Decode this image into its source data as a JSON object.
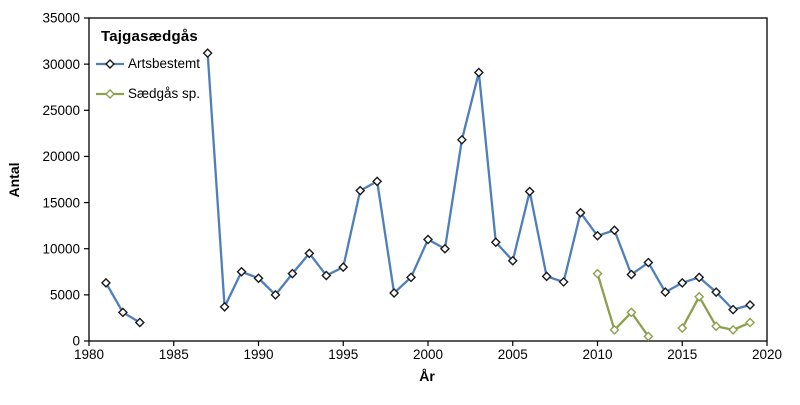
{
  "chart_data": {
    "type": "line",
    "title": "Tajgasædgås",
    "xlabel": "År",
    "ylabel": "Antal",
    "xlim": [
      1980,
      2020
    ],
    "ylim": [
      0,
      35000
    ],
    "x_ticks": [
      1980,
      1985,
      1990,
      1995,
      2000,
      2005,
      2010,
      2015,
      2020
    ],
    "y_ticks": [
      0,
      5000,
      10000,
      15000,
      20000,
      25000,
      30000,
      35000
    ],
    "grid": false,
    "legend_position": "top-left-inside",
    "axis_color": "#000000",
    "series": [
      {
        "name": "Artsbestemt",
        "color": "#4f7fba",
        "marker": "diamond",
        "marker_fill": "#ffffff",
        "marker_outline": "#1a1a1a",
        "points": [
          [
            1981,
            6300
          ],
          [
            1982,
            3100
          ],
          [
            1983,
            2000
          ],
          [
            1987,
            31200
          ],
          [
            1988,
            3700
          ],
          [
            1989,
            7500
          ],
          [
            1990,
            6800
          ],
          [
            1991,
            5000
          ],
          [
            1992,
            7300
          ],
          [
            1993,
            9500
          ],
          [
            1994,
            7100
          ],
          [
            1995,
            8000
          ],
          [
            1996,
            16300
          ],
          [
            1997,
            17300
          ],
          [
            1998,
            5200
          ],
          [
            1999,
            6900
          ],
          [
            2000,
            11000
          ],
          [
            2001,
            10000
          ],
          [
            2002,
            21800
          ],
          [
            2003,
            29100
          ],
          [
            2004,
            10700
          ],
          [
            2005,
            8700
          ],
          [
            2006,
            16200
          ],
          [
            2007,
            7000
          ],
          [
            2008,
            6400
          ],
          [
            2009,
            13900
          ],
          [
            2010,
            11400
          ],
          [
            2011,
            12000
          ],
          [
            2012,
            7200
          ],
          [
            2013,
            8500
          ],
          [
            2014,
            5300
          ],
          [
            2015,
            6300
          ],
          [
            2016,
            6900
          ],
          [
            2017,
            5300
          ],
          [
            2018,
            3400
          ],
          [
            2019,
            3900
          ]
        ]
      },
      {
        "name": "Sædgås sp.",
        "color": "#8ca04e",
        "marker": "diamond",
        "marker_fill": "#ffffff",
        "marker_outline": "#8ca04e",
        "points": [
          [
            2010,
            7300
          ],
          [
            2011,
            1200
          ],
          [
            2012,
            3100
          ],
          [
            2013,
            500
          ],
          [
            2015,
            1400
          ],
          [
            2016,
            4800
          ],
          [
            2017,
            1600
          ],
          [
            2018,
            1200
          ],
          [
            2019,
            2000
          ]
        ]
      }
    ]
  }
}
